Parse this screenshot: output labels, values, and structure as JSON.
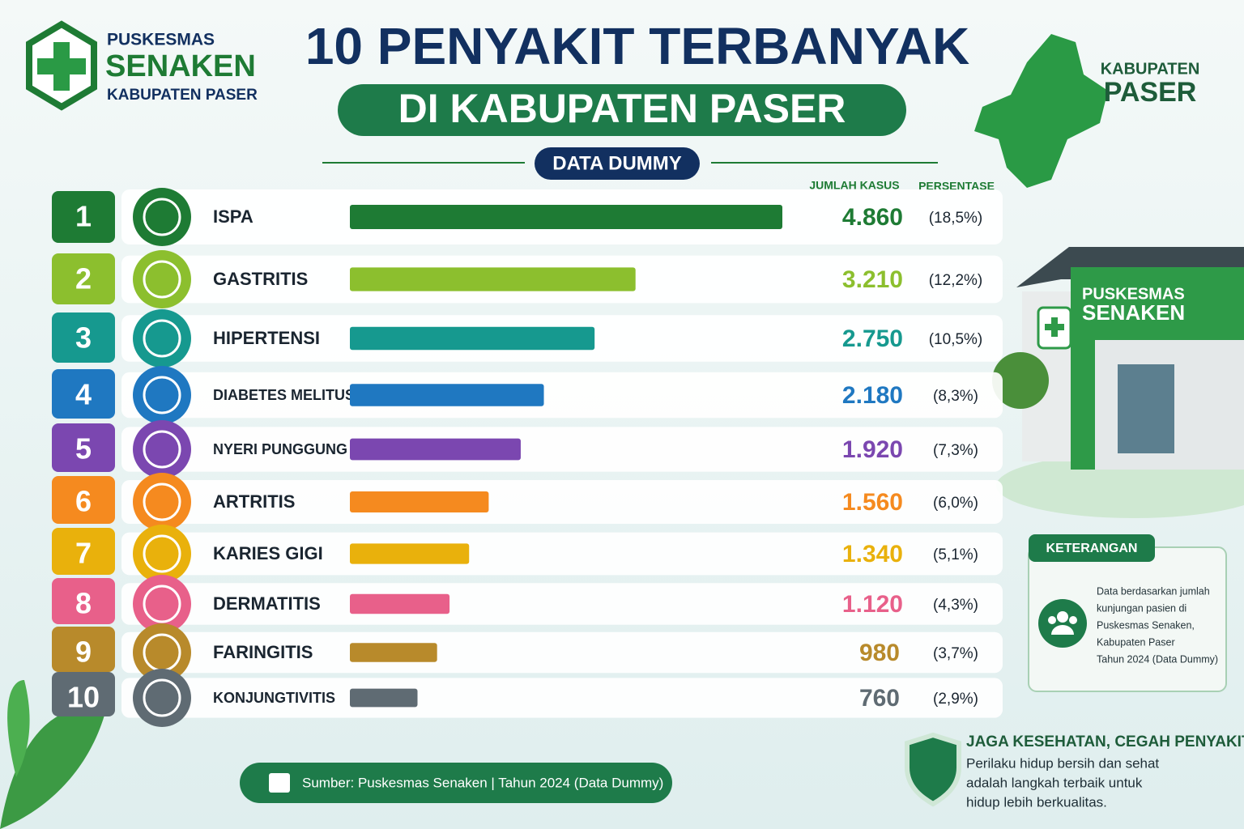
{
  "header": {
    "logo_top": "PUSKESMAS",
    "logo_name": "SENAKEN",
    "logo_sub": "KABUPATEN PASER",
    "title": "10 PENYAKIT TERBANYAK",
    "subtitle": "DI KABUPATEN PASER",
    "badge": "DATA DUMMY",
    "region_top": "KABUPATEN",
    "region_name": "PASER"
  },
  "chart_data": {
    "type": "bar",
    "orientation": "horizontal",
    "value_header": "JUMLAH KASUS",
    "share_header": "PERSENTASE",
    "ranks": [
      1,
      2,
      3,
      4,
      5,
      6,
      7,
      8,
      9,
      10
    ],
    "categories": [
      "ISPA",
      "GASTRITIS",
      "HIPERTENSI",
      "DIABETES MELITUS",
      "NYERI PUNGGUNG",
      "ARTRITIS",
      "KARIES GIGI",
      "DERMATITIS",
      "FARINGITIS",
      "KONJUNGTIVITIS"
    ],
    "values": [
      4860,
      3210,
      2750,
      2180,
      1920,
      1560,
      1340,
      1120,
      980,
      760
    ],
    "value_labels": [
      "4.860",
      "3.210",
      "2.750",
      "2.180",
      "1.920",
      "1.560",
      "1.340",
      "1.120",
      "980",
      "760"
    ],
    "shares": [
      18.5,
      12.2,
      10.5,
      8.3,
      7.3,
      6.0,
      5.1,
      4.3,
      3.7,
      2.9
    ],
    "share_labels": [
      "(18,5%)",
      "(12,2%)",
      "(10,5%)",
      "(8,3%)",
      "(7,3%)",
      "(6,0%)",
      "(5,1%)",
      "(4,3%)",
      "(3,7%)",
      "(2,9%)"
    ],
    "colors": [
      "#1e7b34",
      "#8cbf2e",
      "#16998f",
      "#1f78c1",
      "#7b47b0",
      "#f58a1f",
      "#e9b10c",
      "#e8608a",
      "#b88a2b",
      "#5f6b73"
    ]
  },
  "building": {
    "line1": "PUSKESMAS",
    "line2": "SENAKEN"
  },
  "note": {
    "title": "KETERANGAN",
    "lines": [
      "Data berdasarkan jumlah",
      "kunjungan pasien di",
      "Puskesmas Senaken,",
      "Kabupaten Paser",
      "Tahun 2024 (Data Dummy)"
    ]
  },
  "motto": {
    "title": "JAGA KESEHATAN, CEGAH PENYAKIT",
    "lines": [
      "Perilaku hidup bersih dan sehat",
      "adalah langkah terbaik untuk",
      "hidup lebih berkualitas."
    ]
  },
  "source": "Sumber: Puskesmas Senaken | Tahun 2024 (Data Dummy)"
}
